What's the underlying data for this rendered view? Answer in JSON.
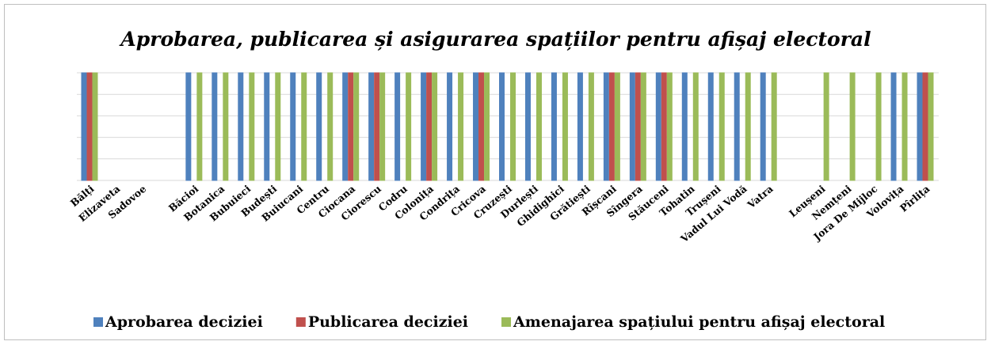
{
  "chart_data": {
    "type": "bar",
    "title": "Aprobarea, publicarea și asigurarea spațiilor pentru afișaj electoral",
    "categories": [
      "Bălți",
      "Elizaveta",
      "Sadovoe",
      null,
      "Băcioi",
      "Botanica",
      "Bubuieci",
      "Budești",
      "Buiucani",
      "Centru",
      "Ciocana",
      "Ciorescu",
      "Codru",
      "Colonița",
      "Condrița",
      "Cricova",
      "Cruzești",
      "Durlești",
      "Ghidighici",
      "Grătiești",
      "Rîșcani",
      "Sîngera",
      "Stăuceni",
      "Tohatin",
      "Trușeni",
      "Vadul Lui Vodă",
      "Vatra",
      null,
      "Leușeni",
      "Nemțeni",
      "Jora De Mijloc",
      "Volovița",
      "Pîrlița"
    ],
    "series": [
      {
        "name": "Aprobarea deciziei",
        "color": "#4f81bd",
        "values": [
          1,
          0,
          0,
          null,
          1,
          1,
          1,
          1,
          1,
          1,
          1,
          1,
          1,
          1,
          1,
          1,
          1,
          1,
          1,
          1,
          1,
          1,
          1,
          1,
          1,
          1,
          1,
          null,
          0,
          0,
          0,
          1,
          1
        ]
      },
      {
        "name": "Publicarea deciziei",
        "color": "#c0504d",
        "values": [
          1,
          0,
          0,
          null,
          0,
          0,
          0,
          0,
          0,
          0,
          1,
          1,
          0,
          1,
          0,
          1,
          0,
          0,
          0,
          0,
          1,
          1,
          1,
          0,
          0,
          0,
          0,
          null,
          0,
          0,
          0,
          0,
          1
        ]
      },
      {
        "name": "Amenajarea spațiului pentru afișaj electoral",
        "color": "#9bbb59",
        "values": [
          1,
          0,
          0,
          null,
          1,
          1,
          1,
          1,
          1,
          1,
          1,
          1,
          1,
          1,
          1,
          1,
          1,
          1,
          1,
          1,
          1,
          1,
          1,
          1,
          1,
          1,
          1,
          null,
          1,
          1,
          1,
          1,
          1
        ]
      }
    ],
    "ylim": [
      0,
      1
    ],
    "yticks": [
      0,
      0.2,
      0.4,
      0.6,
      0.8,
      1
    ],
    "grid": true,
    "legend": "bottom"
  }
}
